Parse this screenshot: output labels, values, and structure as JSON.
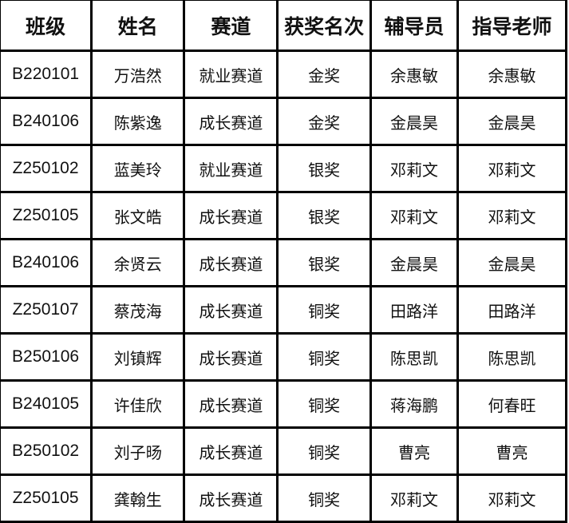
{
  "headers": [
    "班级",
    "姓名",
    "赛道",
    "获奖名次",
    "辅导员",
    "指导老师"
  ],
  "rows": [
    [
      "B220101",
      "万浩然",
      "就业赛道",
      "金奖",
      "余惠敏",
      "余惠敏"
    ],
    [
      "B240106",
      "陈紫逸",
      "成长赛道",
      "金奖",
      "金晨昊",
      "金晨昊"
    ],
    [
      "Z250102",
      "蓝美玲",
      "就业赛道",
      "银奖",
      "邓莉文",
      "邓莉文"
    ],
    [
      "Z250105",
      "张文皓",
      "成长赛道",
      "银奖",
      "邓莉文",
      "邓莉文"
    ],
    [
      "B240106",
      "余贤云",
      "成长赛道",
      "银奖",
      "金晨昊",
      "金晨昊"
    ],
    [
      "Z250107",
      "蔡茂海",
      "成长赛道",
      "铜奖",
      "田路洋",
      "田路洋"
    ],
    [
      "B250106",
      "刘镇辉",
      "成长赛道",
      "铜奖",
      "陈思凯",
      "陈思凯"
    ],
    [
      "B240105",
      "许佳欣",
      "成长赛道",
      "铜奖",
      "蒋海鹏",
      "何春旺"
    ],
    [
      "B250102",
      "刘子旸",
      "成长赛道",
      "铜奖",
      "曹亮",
      "曹亮"
    ],
    [
      "Z250105",
      "龚翰生",
      "成长赛道",
      "铜奖",
      "邓莉文",
      "邓莉文"
    ]
  ]
}
